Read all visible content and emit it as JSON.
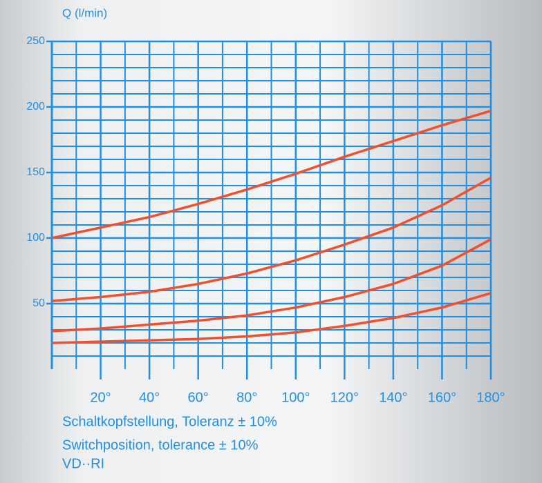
{
  "chart_data": {
    "type": "line",
    "y_label": "Q (l/min)",
    "x": [
      0,
      20,
      40,
      60,
      80,
      100,
      120,
      140,
      160,
      180
    ],
    "series": [
      {
        "color": "#f0502e",
        "values": [
          100,
          108,
          116,
          126,
          137,
          149,
          162,
          174,
          186,
          197
        ]
      },
      {
        "color": "#f0502e",
        "values": [
          52,
          55,
          59,
          65,
          73,
          83,
          95,
          108,
          125,
          146
        ]
      },
      {
        "color": "#f0502e",
        "values": [
          29,
          31,
          34,
          37,
          41,
          47,
          55,
          65,
          79,
          99
        ]
      },
      {
        "color": "#f0502e",
        "values": [
          20,
          21,
          22,
          23,
          25,
          28,
          33,
          39,
          47,
          58
        ]
      }
    ],
    "xlim": [
      0,
      180
    ],
    "xticks": [
      {
        "value": 20,
        "label": "20°"
      },
      {
        "value": 40,
        "label": "40°"
      },
      {
        "value": 60,
        "label": "60°"
      },
      {
        "value": 80,
        "label": "80°"
      },
      {
        "value": 100,
        "label": "100°"
      },
      {
        "value": 120,
        "label": "120°"
      },
      {
        "value": 140,
        "label": "140°"
      },
      {
        "value": 160,
        "label": "160°"
      },
      {
        "value": 180,
        "label": "180°"
      }
    ],
    "ylim": [
      0,
      250
    ],
    "yticks": [
      50,
      100,
      150,
      200,
      250
    ],
    "grid": true,
    "grid_color": "#1e8fe6",
    "annotations": [
      "Schaltkopfstellung, Toleranz ± 10%",
      "Switchposition, tolerance ± 10%",
      "VD··RI"
    ]
  }
}
